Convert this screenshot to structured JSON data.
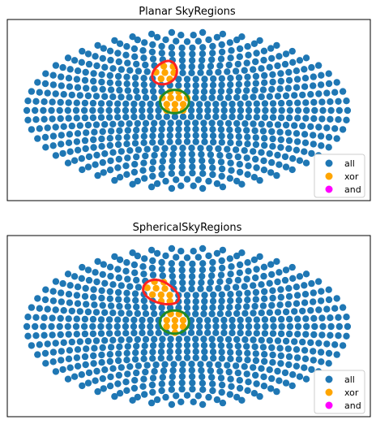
{
  "chart_data": [
    {
      "type": "scatter",
      "title": "Planar SkyRegions",
      "projection": "aitoff",
      "grid": false,
      "legend_position": "lower-right",
      "series": [
        {
          "name": "all",
          "color": "#1f77b4"
        },
        {
          "name": "xor",
          "color": "#ffa500"
        },
        {
          "name": "and",
          "color": "#ff00ff"
        }
      ],
      "regions": [
        {
          "color": "#ff2222",
          "shape": "ellipse",
          "center": [
            -30,
            42
          ],
          "semi_axes": [
            16,
            13
          ],
          "rotation_deg": 0
        },
        {
          "color": "#228b22",
          "shape": "ellipse",
          "center": [
            -14,
            10
          ],
          "semi_axes": [
            16,
            13
          ],
          "rotation_deg": 0
        }
      ]
    },
    {
      "type": "scatter",
      "title": "SphericalSkyRegions",
      "projection": "aitoff",
      "grid": false,
      "legend_position": "lower-right",
      "series": [
        {
          "name": "all",
          "color": "#1f77b4"
        },
        {
          "name": "xor",
          "color": "#ffa500"
        },
        {
          "name": "and",
          "color": "#ff00ff"
        }
      ],
      "regions": [
        {
          "color": "#ff2222",
          "shape": "ellipse",
          "center": [
            -35,
            38
          ],
          "semi_axes": [
            26,
            11
          ],
          "rotation_deg": -18
        },
        {
          "color": "#228b22",
          "shape": "ellipse",
          "center": [
            -14,
            5
          ],
          "semi_axes": [
            16,
            13
          ],
          "rotation_deg": 0
        }
      ]
    }
  ]
}
